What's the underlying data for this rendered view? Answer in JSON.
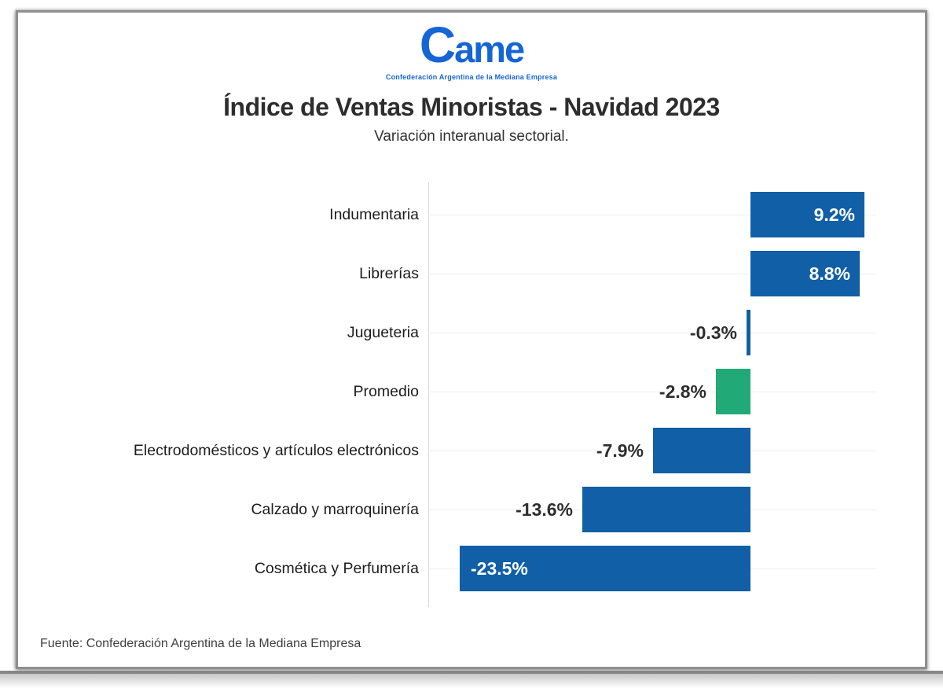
{
  "logo": {
    "brand": "Came",
    "tagline": "Confederación Argentina de la Mediana Empresa",
    "color": "#1565d5"
  },
  "chart_data": {
    "type": "bar",
    "orientation": "horizontal",
    "title": "Índice de Ventas Minoristas - Navidad 2023",
    "subtitle": "Variación interanual sectorial.",
    "source": "Fuente: Confederación Argentina de la Mediana Empresa",
    "categories": [
      "Indumentaria",
      "Librerías",
      "Jugueteria",
      "Promedio",
      "Electrodomésticos y artículos electrónicos",
      "Calzado y marroquinería",
      "Cosmética y Perfumería"
    ],
    "values": [
      9.2,
      8.8,
      -0.3,
      -2.8,
      -7.9,
      -13.6,
      -23.5
    ],
    "value_labels": [
      "9.2%",
      "8.8%",
      "-0.3%",
      "-2.8%",
      "-7.9%",
      "-13.6%",
      "-23.5%"
    ],
    "bar_colors": [
      "#115fa6",
      "#115fa6",
      "#115fa6",
      "#21aa78",
      "#115fa6",
      "#115fa6",
      "#115fa6"
    ],
    "highlight": {
      "category": "Promedio",
      "color": "#21aa78"
    },
    "default_bar_color": "#115fa6",
    "xlim": [
      -26,
      10.2
    ],
    "grid": "light horizontal line per category row",
    "legend": "none",
    "xlabel": "",
    "ylabel": ""
  }
}
